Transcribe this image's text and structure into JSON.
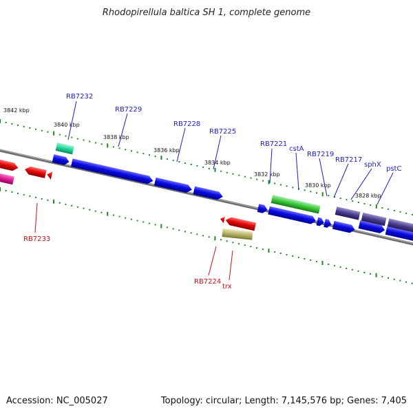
{
  "title": "Rhodopirellula baltica SH 1, complete genome",
  "footer": {
    "accession": "Accession: NC_005027",
    "summary": "Topology: circular; Length: 7,145,576 bp; Genes: 7,405"
  },
  "scale_labels": [
    "3842 kbp",
    "3840 kbp",
    "3838 kbp",
    "3836 kbp",
    "3834 kbp",
    "3832 kbp",
    "3830 kbp",
    "3828 kbp"
  ],
  "gene_labels_top": [
    "RB7232",
    "RB7229",
    "RB7228",
    "RB7225",
    "RB7221",
    "cstA",
    "RB7219",
    "RB7217",
    "sphX",
    "pstC"
  ],
  "gene_labels_bottom": [
    "RB7233",
    "RB7224",
    "trx"
  ],
  "colors": {
    "plus_strand_cds": "#0a0ae6",
    "minus_strand_cds": "#e60a0a",
    "pink_feature": "#e01890",
    "teal_feature": "#20d898",
    "green_feature": "#38c838",
    "purple_feature": "#4a3c8c",
    "khaki_feature": "#b8b468",
    "backbone": "#7a7a7a",
    "tick": "#1a8a1a",
    "label_blue": "#1c1ccc",
    "label_red": "#cc1111"
  }
}
